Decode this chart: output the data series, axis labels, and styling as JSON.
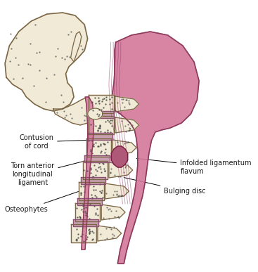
{
  "fig_width": 3.67,
  "fig_height": 3.87,
  "dpi": 100,
  "bg_color": "#ffffff",
  "bone_fill": "#f0ead6",
  "bone_edge": "#7a6545",
  "disc_fill": "#c8a0b0",
  "cord_fill": "#d4789a",
  "cord_fill2": "#c06888",
  "cord_edge": "#8B3a5a",
  "text_color": "#1a1a1a",
  "font_size": 7,
  "labels": {
    "contusion": "Contusion\nof cord",
    "torn": "Torn anterior\nlongitudinal\nligament",
    "osteo": "Osteophytes",
    "infolded": "Infolded ligamentum\nflavum",
    "bulging": "Bulging disc"
  }
}
